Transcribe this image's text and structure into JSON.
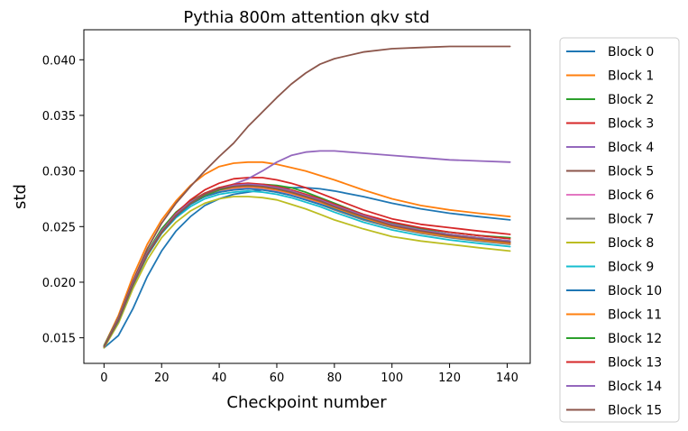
{
  "chart_data": {
    "type": "line",
    "title": "Pythia 800m attention qkv std",
    "xlabel": "Checkpoint number",
    "ylabel": "std",
    "xlim": [
      -7,
      148
    ],
    "ylim": [
      0.0127,
      0.0427
    ],
    "xticks": [
      0,
      20,
      40,
      60,
      80,
      100,
      120,
      140
    ],
    "yticks": [
      0.015,
      0.02,
      0.025,
      0.03,
      0.035,
      0.04
    ],
    "ytick_labels": [
      "0.015",
      "0.020",
      "0.025",
      "0.030",
      "0.035",
      "0.040"
    ],
    "grid": false,
    "legend_position": "outside-right",
    "x": [
      0,
      5,
      10,
      15,
      20,
      25,
      30,
      35,
      40,
      45,
      50,
      55,
      60,
      65,
      70,
      75,
      80,
      90,
      100,
      110,
      120,
      130,
      141
    ],
    "series": [
      {
        "name": "Block 0",
        "color": "#1f77b4",
        "values": [
          0.0141,
          0.0152,
          0.0176,
          0.0205,
          0.0228,
          0.0246,
          0.0259,
          0.0269,
          0.0275,
          0.0279,
          0.0281,
          0.0283,
          0.0284,
          0.0285,
          0.0285,
          0.0284,
          0.0282,
          0.0277,
          0.0271,
          0.0266,
          0.0262,
          0.0259,
          0.0256
        ]
      },
      {
        "name": "Block 1",
        "color": "#ff7f0e",
        "values": [
          0.0143,
          0.017,
          0.0205,
          0.0234,
          0.0256,
          0.0273,
          0.0287,
          0.0297,
          0.0304,
          0.0307,
          0.0308,
          0.0308,
          0.0306,
          0.0303,
          0.03,
          0.0296,
          0.0292,
          0.0283,
          0.0275,
          0.0269,
          0.0265,
          0.0262,
          0.0259
        ]
      },
      {
        "name": "Block 2",
        "color": "#2ca02c",
        "values": [
          0.0143,
          0.0168,
          0.02,
          0.0227,
          0.0248,
          0.0263,
          0.0273,
          0.028,
          0.0285,
          0.0287,
          0.0288,
          0.0288,
          0.0287,
          0.0285,
          0.0281,
          0.0276,
          0.0271,
          0.0261,
          0.0253,
          0.0248,
          0.0245,
          0.0242,
          0.024
        ]
      },
      {
        "name": "Block 3",
        "color": "#d62728",
        "values": [
          0.0142,
          0.0166,
          0.0198,
          0.0225,
          0.0246,
          0.0262,
          0.0274,
          0.0283,
          0.0289,
          0.0293,
          0.0294,
          0.0294,
          0.0292,
          0.0289,
          0.0285,
          0.028,
          0.0275,
          0.0265,
          0.0257,
          0.0252,
          0.0249,
          0.0246,
          0.0243
        ]
      },
      {
        "name": "Block 4",
        "color": "#9467bd",
        "values": [
          0.0142,
          0.0167,
          0.0199,
          0.0226,
          0.0246,
          0.0261,
          0.0271,
          0.0278,
          0.0283,
          0.0288,
          0.0293,
          0.03,
          0.0308,
          0.0314,
          0.0317,
          0.0318,
          0.0318,
          0.0316,
          0.0314,
          0.0312,
          0.031,
          0.0309,
          0.0308
        ]
      },
      {
        "name": "Block 5",
        "color": "#8c564b",
        "values": [
          0.0142,
          0.0168,
          0.0201,
          0.023,
          0.0253,
          0.0271,
          0.0286,
          0.03,
          0.0313,
          0.0325,
          0.034,
          0.0353,
          0.0366,
          0.0378,
          0.0388,
          0.0396,
          0.0401,
          0.0407,
          0.041,
          0.0411,
          0.0412,
          0.0412,
          0.0412
        ]
      },
      {
        "name": "Block 6",
        "color": "#e377c2",
        "values": [
          0.0142,
          0.0166,
          0.0198,
          0.0225,
          0.0245,
          0.026,
          0.0271,
          0.0278,
          0.0282,
          0.0284,
          0.0285,
          0.0284,
          0.0282,
          0.0279,
          0.0275,
          0.0271,
          0.0266,
          0.0258,
          0.025,
          0.0245,
          0.0241,
          0.0238,
          0.0235
        ]
      },
      {
        "name": "Block 7",
        "color": "#7f7f7f",
        "values": [
          0.0142,
          0.0165,
          0.0197,
          0.0224,
          0.0244,
          0.0259,
          0.027,
          0.0277,
          0.0281,
          0.0283,
          0.0284,
          0.0283,
          0.0281,
          0.0278,
          0.0274,
          0.027,
          0.0265,
          0.0256,
          0.0249,
          0.0244,
          0.024,
          0.0237,
          0.0234
        ]
      },
      {
        "name": "Block 8",
        "color": "#bcbd22",
        "values": [
          0.0141,
          0.0163,
          0.0194,
          0.022,
          0.024,
          0.0254,
          0.0264,
          0.0271,
          0.0275,
          0.0277,
          0.0277,
          0.0276,
          0.0274,
          0.027,
          0.0266,
          0.0261,
          0.0256,
          0.0248,
          0.0241,
          0.0237,
          0.0234,
          0.0231,
          0.0228
        ]
      },
      {
        "name": "Block 9",
        "color": "#17becf",
        "values": [
          0.0142,
          0.0166,
          0.0198,
          0.0224,
          0.0244,
          0.0258,
          0.0268,
          0.0275,
          0.0279,
          0.0281,
          0.0282,
          0.0281,
          0.0279,
          0.0276,
          0.0272,
          0.0268,
          0.0263,
          0.0254,
          0.0247,
          0.0242,
          0.0238,
          0.0235,
          0.0232
        ]
      },
      {
        "name": "Block 10",
        "color": "#1f77b4",
        "values": [
          0.0142,
          0.0165,
          0.0197,
          0.0224,
          0.0244,
          0.0259,
          0.027,
          0.0277,
          0.0281,
          0.0283,
          0.0284,
          0.0283,
          0.0281,
          0.0278,
          0.0274,
          0.027,
          0.0266,
          0.0257,
          0.025,
          0.0245,
          0.0242,
          0.0239,
          0.0236
        ]
      },
      {
        "name": "Block 11",
        "color": "#ff7f0e",
        "values": [
          0.0142,
          0.0166,
          0.0198,
          0.0225,
          0.0245,
          0.026,
          0.0271,
          0.0278,
          0.0283,
          0.0285,
          0.0286,
          0.0285,
          0.0283,
          0.028,
          0.0276,
          0.0272,
          0.0267,
          0.0258,
          0.025,
          0.0245,
          0.0241,
          0.0238,
          0.0235
        ]
      },
      {
        "name": "Block 12",
        "color": "#2ca02c",
        "values": [
          0.0142,
          0.0166,
          0.0198,
          0.0225,
          0.0245,
          0.026,
          0.0271,
          0.0278,
          0.0283,
          0.0286,
          0.0287,
          0.0286,
          0.0284,
          0.0281,
          0.0277,
          0.0273,
          0.0268,
          0.0259,
          0.0252,
          0.0247,
          0.0243,
          0.024,
          0.0237
        ]
      },
      {
        "name": "Block 13",
        "color": "#d62728",
        "values": [
          0.0142,
          0.0167,
          0.0199,
          0.0226,
          0.0246,
          0.0261,
          0.0272,
          0.028,
          0.0285,
          0.0288,
          0.0289,
          0.0288,
          0.0286,
          0.0283,
          0.0279,
          0.0275,
          0.027,
          0.0261,
          0.0254,
          0.0249,
          0.0245,
          0.0242,
          0.0239
        ]
      },
      {
        "name": "Block 14",
        "color": "#9467bd",
        "values": [
          0.0142,
          0.0167,
          0.0199,
          0.0226,
          0.0246,
          0.0261,
          0.0272,
          0.0279,
          0.0284,
          0.0287,
          0.0288,
          0.0287,
          0.0285,
          0.0282,
          0.0278,
          0.0274,
          0.0269,
          0.026,
          0.0252,
          0.0247,
          0.0243,
          0.024,
          0.0237
        ]
      },
      {
        "name": "Block 15",
        "color": "#8c564b",
        "values": [
          0.0142,
          0.0166,
          0.0198,
          0.0225,
          0.0245,
          0.026,
          0.0271,
          0.0279,
          0.0284,
          0.0286,
          0.0287,
          0.0286,
          0.0284,
          0.0281,
          0.0277,
          0.0273,
          0.0268,
          0.0259,
          0.0251,
          0.0246,
          0.0242,
          0.0239,
          0.0236
        ]
      }
    ]
  }
}
